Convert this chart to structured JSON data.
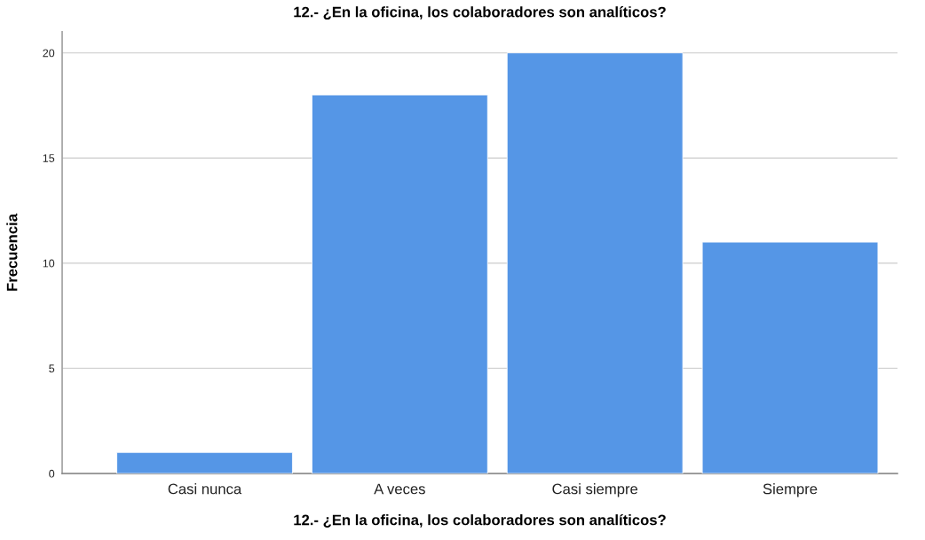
{
  "chart_data": {
    "type": "bar",
    "title": "12.- ¿En la oficina, los colaboradores son analíticos?",
    "xlabel": "12.- ¿En la oficina, los colaboradores son analíticos?",
    "ylabel": "Frecuencia",
    "categories": [
      "Casi nunca",
      "A veces",
      "Casi siempre",
      "Siempre"
    ],
    "values": [
      1,
      18,
      20,
      11
    ],
    "color": "#5596e6",
    "ylim": [
      0,
      21
    ],
    "yticks": [
      0,
      5,
      10,
      15,
      20
    ],
    "grid": "y"
  }
}
